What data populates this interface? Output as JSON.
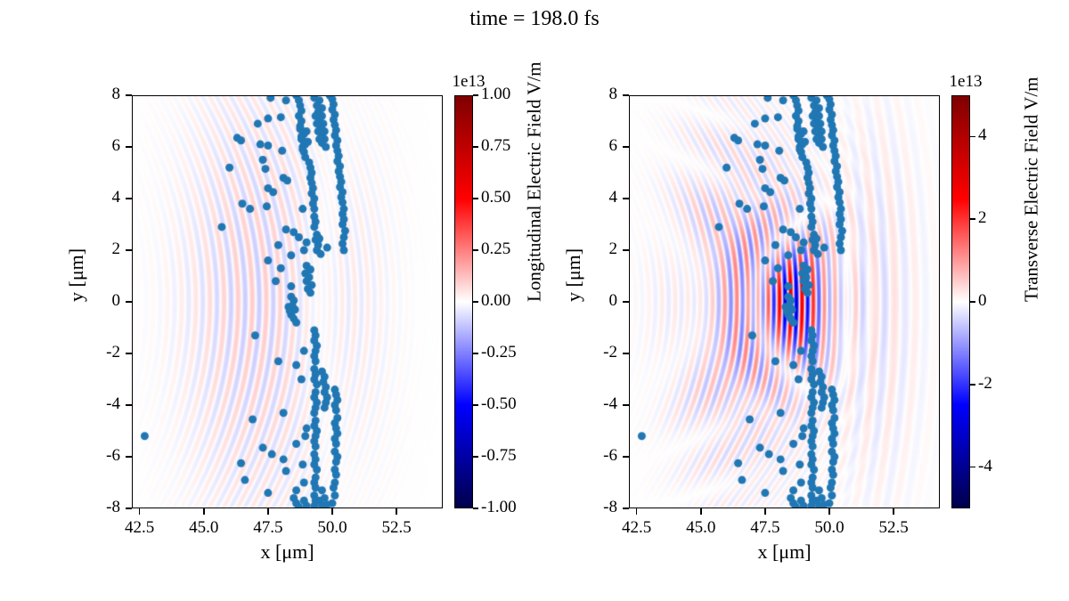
{
  "chart_data": {
    "type": "heatmap+scatter",
    "title": "time = 198.0 fs",
    "x_label": "x [μm]",
    "y_label": "y [μm]",
    "x_range": [
      42.2,
      54.3
    ],
    "y_range": [
      -8,
      8
    ],
    "x_tick_values": [
      42.5,
      45.0,
      47.5,
      50.0,
      52.5
    ],
    "x_tick_labels": [
      "42.5",
      "45.0",
      "47.5",
      "50.0",
      "52.5"
    ],
    "y_tick_values": [
      8,
      6,
      4,
      2,
      0,
      -2,
      -4,
      -6,
      -8
    ],
    "y_tick_labels": [
      "8",
      "6",
      "4",
      "2",
      "0",
      "-2",
      "-4",
      "-6",
      "-8"
    ],
    "grid": false,
    "colormap": {
      "name": "seismic",
      "stops": [
        "#00004c",
        "#0000ff",
        "#ffffff",
        "#ff0000",
        "#7f0000"
      ]
    },
    "scatter": {
      "color": "#2077b4",
      "point_radius_px": 4.5,
      "points": [
        [
          42.7,
          -5.2
        ],
        [
          45.7,
          2.9
        ],
        [
          46.0,
          5.2
        ],
        [
          46.3,
          6.35
        ],
        [
          46.45,
          6.25
        ],
        [
          47.1,
          6.9
        ],
        [
          47.5,
          7.1
        ],
        [
          48.0,
          7.15
        ],
        [
          47.6,
          7.9
        ],
        [
          48.2,
          7.8
        ],
        [
          47.2,
          6.1
        ],
        [
          47.5,
          6.05
        ],
        [
          47.3,
          5.5
        ],
        [
          47.4,
          5.15
        ],
        [
          48.05,
          5.85
        ],
        [
          48.1,
          4.8
        ],
        [
          48.25,
          4.7
        ],
        [
          47.5,
          4.4
        ],
        [
          47.7,
          4.25
        ],
        [
          46.5,
          3.8
        ],
        [
          46.8,
          3.6
        ],
        [
          47.45,
          3.7
        ],
        [
          48.85,
          3.6
        ],
        [
          48.2,
          2.8
        ],
        [
          48.5,
          2.7
        ],
        [
          47.9,
          2.2
        ],
        [
          48.4,
          1.8
        ],
        [
          47.5,
          1.6
        ],
        [
          48.0,
          1.3
        ],
        [
          47.8,
          0.8
        ],
        [
          48.4,
          0.6
        ],
        [
          48.3,
          -0.2
        ],
        [
          47.0,
          -1.3
        ],
        [
          47.9,
          -2.3
        ],
        [
          48.6,
          -2.45
        ],
        [
          46.9,
          -4.55
        ],
        [
          48.1,
          -4.3
        ],
        [
          47.3,
          -5.65
        ],
        [
          47.65,
          -5.9
        ],
        [
          46.45,
          -6.25
        ],
        [
          48.1,
          -6.1
        ],
        [
          48.2,
          -6.55
        ],
        [
          46.6,
          -6.9
        ],
        [
          47.5,
          -7.4
        ],
        [
          49.3,
          7.9
        ],
        [
          49.5,
          7.8
        ],
        [
          49.4,
          7.6
        ],
        [
          49.6,
          7.5
        ],
        [
          49.45,
          7.35
        ],
        [
          49.6,
          7.2
        ],
        [
          49.5,
          7.05
        ],
        [
          49.65,
          6.9
        ],
        [
          49.55,
          6.75
        ],
        [
          49.7,
          6.6
        ],
        [
          49.6,
          6.45
        ],
        [
          49.7,
          6.3
        ],
        [
          49.6,
          6.15
        ],
        [
          49.75,
          6.0
        ],
        [
          49.4,
          6.9
        ],
        [
          49.45,
          6.6
        ],
        [
          49.5,
          6.3
        ],
        [
          49.35,
          7.2
        ],
        [
          48.6,
          8.0
        ],
        [
          48.7,
          7.8
        ],
        [
          48.75,
          7.6
        ],
        [
          48.8,
          7.4
        ],
        [
          48.7,
          7.2
        ],
        [
          48.8,
          7.0
        ],
        [
          48.75,
          6.8
        ],
        [
          48.85,
          6.6
        ],
        [
          48.8,
          6.4
        ],
        [
          48.9,
          6.2
        ],
        [
          48.85,
          6.0
        ],
        [
          48.9,
          5.8
        ],
        [
          48.95,
          5.6
        ],
        [
          48.75,
          6.7
        ],
        [
          48.9,
          6.5
        ],
        [
          48.95,
          6.1
        ],
        [
          49.0,
          6.6
        ],
        [
          49.05,
          6.2
        ],
        [
          48.85,
          5.9
        ],
        [
          48.8,
          6.3
        ],
        [
          49.1,
          5.4
        ],
        [
          49.15,
          5.2
        ],
        [
          49.2,
          5.0
        ],
        [
          49.15,
          4.8
        ],
        [
          49.2,
          4.6
        ],
        [
          49.25,
          4.4
        ],
        [
          49.2,
          4.2
        ],
        [
          49.3,
          4.0
        ],
        [
          49.25,
          3.8
        ],
        [
          49.3,
          3.6
        ],
        [
          49.3,
          3.3
        ],
        [
          49.35,
          3.1
        ],
        [
          49.3,
          2.9
        ],
        [
          49.4,
          2.6
        ],
        [
          49.35,
          2.4
        ],
        [
          49.45,
          2.2
        ],
        [
          49.4,
          2.0
        ],
        [
          49.9,
          8.0
        ],
        [
          50.0,
          7.85
        ],
        [
          50.05,
          7.65
        ],
        [
          50.0,
          7.45
        ],
        [
          50.1,
          7.25
        ],
        [
          50.05,
          7.05
        ],
        [
          50.1,
          6.85
        ],
        [
          50.15,
          6.65
        ],
        [
          50.1,
          6.45
        ],
        [
          50.2,
          6.25
        ],
        [
          50.15,
          6.05
        ],
        [
          50.2,
          5.85
        ],
        [
          50.25,
          5.65
        ],
        [
          50.2,
          5.45
        ],
        [
          50.3,
          5.25
        ],
        [
          50.25,
          5.05
        ],
        [
          50.3,
          4.85
        ],
        [
          50.35,
          4.65
        ],
        [
          50.3,
          4.45
        ],
        [
          50.4,
          4.25
        ],
        [
          50.35,
          4.05
        ],
        [
          50.4,
          3.85
        ],
        [
          50.45,
          3.6
        ],
        [
          50.4,
          3.4
        ],
        [
          50.45,
          3.2
        ],
        [
          50.4,
          3.0
        ],
        [
          50.5,
          2.75
        ],
        [
          50.45,
          2.5
        ],
        [
          50.4,
          2.25
        ],
        [
          50.45,
          2.0
        ],
        [
          49.5,
          2.45
        ],
        [
          49.8,
          2.1
        ],
        [
          49.55,
          1.85
        ],
        [
          49.0,
          2.3
        ],
        [
          48.7,
          2.5
        ],
        [
          48.9,
          2.0
        ],
        [
          49.0,
          1.4
        ],
        [
          49.15,
          1.25
        ],
        [
          48.95,
          1.1
        ],
        [
          49.1,
          0.95
        ],
        [
          49.0,
          0.8
        ],
        [
          49.2,
          0.65
        ],
        [
          49.05,
          0.5
        ],
        [
          49.15,
          0.35
        ],
        [
          48.4,
          0.2
        ],
        [
          48.5,
          0.05
        ],
        [
          48.45,
          -0.15
        ],
        [
          48.55,
          -0.3
        ],
        [
          48.4,
          -0.5
        ],
        [
          48.5,
          -0.65
        ],
        [
          48.6,
          -0.8
        ],
        [
          48.35,
          -0.35
        ],
        [
          49.3,
          -1.1
        ],
        [
          49.35,
          -1.3
        ],
        [
          49.3,
          -1.5
        ],
        [
          49.4,
          -1.7
        ],
        [
          49.35,
          -1.9
        ],
        [
          49.3,
          -2.1
        ],
        [
          49.35,
          -2.3
        ],
        [
          49.3,
          -2.6
        ],
        [
          49.35,
          -2.8
        ],
        [
          49.3,
          -3.0
        ],
        [
          49.4,
          -3.2
        ],
        [
          49.35,
          -3.5
        ],
        [
          49.3,
          -3.7
        ],
        [
          49.4,
          -3.9
        ],
        [
          49.35,
          -4.1
        ],
        [
          49.3,
          -4.3
        ],
        [
          49.35,
          -4.6
        ],
        [
          49.3,
          -4.8
        ],
        [
          49.4,
          -5.0
        ],
        [
          49.35,
          -5.2
        ],
        [
          49.3,
          -5.4
        ],
        [
          49.35,
          -5.6
        ],
        [
          49.3,
          -5.9
        ],
        [
          49.35,
          -6.1
        ],
        [
          49.3,
          -6.3
        ],
        [
          49.4,
          -6.5
        ],
        [
          49.35,
          -6.8
        ],
        [
          49.3,
          -7.0
        ],
        [
          49.35,
          -7.2
        ],
        [
          49.3,
          -7.5
        ],
        [
          49.35,
          -7.7
        ],
        [
          49.3,
          -7.9
        ],
        [
          49.6,
          -2.7
        ],
        [
          49.7,
          -2.9
        ],
        [
          49.65,
          -3.1
        ],
        [
          49.75,
          -3.3
        ],
        [
          49.7,
          -3.5
        ],
        [
          49.8,
          -3.7
        ],
        [
          49.75,
          -3.9
        ],
        [
          49.7,
          -4.1
        ],
        [
          50.1,
          -3.4
        ],
        [
          50.15,
          -3.6
        ],
        [
          50.2,
          -3.8
        ],
        [
          50.1,
          -4.0
        ],
        [
          50.15,
          -4.2
        ],
        [
          50.2,
          -4.5
        ],
        [
          50.1,
          -4.7
        ],
        [
          50.15,
          -4.9
        ],
        [
          50.2,
          -5.1
        ],
        [
          50.1,
          -5.3
        ],
        [
          50.15,
          -5.5
        ],
        [
          50.1,
          -5.8
        ],
        [
          50.2,
          -6.0
        ],
        [
          50.15,
          -6.2
        ],
        [
          50.1,
          -6.5
        ],
        [
          50.15,
          -6.7
        ],
        [
          50.1,
          -7.0
        ],
        [
          50.05,
          -7.2
        ],
        [
          50.1,
          -7.5
        ],
        [
          50.0,
          -7.8
        ],
        [
          48.5,
          -7.6
        ],
        [
          48.6,
          -7.8
        ],
        [
          48.7,
          -7.95
        ],
        [
          48.9,
          -7.7
        ],
        [
          49.0,
          -7.9
        ],
        [
          49.5,
          -7.7
        ],
        [
          49.6,
          -7.9
        ],
        [
          49.7,
          -7.6
        ],
        [
          49.8,
          -7.85
        ],
        [
          48.6,
          -7.3
        ],
        [
          49.6,
          -7.3
        ],
        [
          48.9,
          -1.9
        ],
        [
          48.8,
          -3.0
        ],
        [
          49.0,
          -4.9
        ],
        [
          48.85,
          -6.3
        ],
        [
          48.9,
          -7.0
        ],
        [
          48.6,
          -5.5
        ],
        [
          48.95,
          -5.2
        ]
      ]
    },
    "panels": [
      {
        "name": "longitudinal-field-panel",
        "colorbar": {
          "label": "Longitudinal Electric Field V/m",
          "offset": "1e13",
          "range": [
            -1,
            1
          ],
          "tick_values": [
            1.0,
            0.75,
            0.5,
            0.25,
            0.0,
            -0.25,
            -0.5,
            -0.75,
            -1.0
          ],
          "tick_labels": [
            "1.00",
            "0.75",
            "0.50",
            "0.25",
            "0.00",
            "-0.25",
            "-0.50",
            "-0.75",
            "-1.00"
          ]
        },
        "field_components": [
          {
            "amp": 0.1,
            "cx": 46.8,
            "sx": 2.6,
            "cy": 0,
            "sy": 9.0,
            "x0": 48.4,
            "lambda": 0.55,
            "curv": 0.035,
            "phase": 0
          },
          {
            "amp": 0.05,
            "cx": 50.3,
            "sx": 2.0,
            "cy": 0,
            "sy": 7.0,
            "x0": 48.4,
            "lambda": 0.5,
            "curv": 0.03,
            "phase": 1.5
          }
        ]
      },
      {
        "name": "transverse-field-panel",
        "colorbar": {
          "label": "Transverse Electric Field V/m",
          "offset": "1e13",
          "range": [
            -5,
            5
          ],
          "tick_values": [
            4,
            2,
            0,
            -2,
            -4
          ],
          "tick_labels": [
            "4",
            "2",
            "0",
            "-2",
            "-4"
          ]
        },
        "field_components": [
          {
            "amp": 0.52,
            "cx": 48.4,
            "sx": 1.7,
            "cy": 0,
            "sy": 2.4,
            "x0": 48.4,
            "lambda": 0.43,
            "curv": 0.02,
            "phase": 0
          },
          {
            "amp": 0.16,
            "cx": 47.0,
            "sx": 2.8,
            "cy": 0,
            "sy": 6.0,
            "x0": 48.4,
            "lambda": 0.5,
            "curv": 0.05,
            "phase": 0.8
          },
          {
            "amp": 0.07,
            "cx": 51.8,
            "sx": 1.8,
            "cy": 0,
            "sy": 7.5,
            "x0": 48.4,
            "lambda": 0.8,
            "curv": 0.012,
            "phase": 0.3
          },
          {
            "amp": 0.05,
            "cx": 45.3,
            "sx": 1.6,
            "cy": 0,
            "sy": 8.5,
            "x0": 48.4,
            "lambda": 0.55,
            "curv": 0.035,
            "phase": 0
          }
        ]
      }
    ]
  }
}
